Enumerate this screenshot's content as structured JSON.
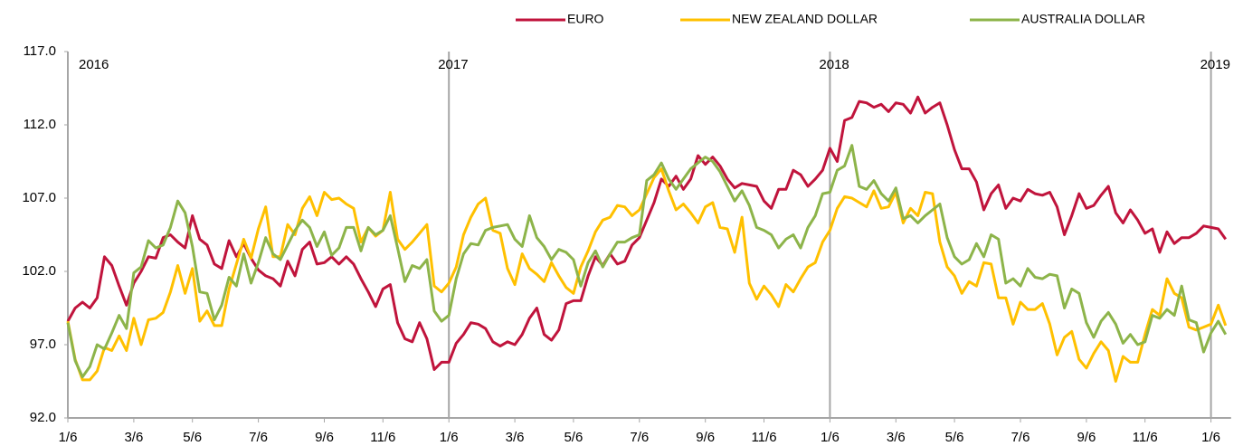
{
  "chart_data": {
    "type": "line",
    "categories": [
      "1/6",
      null,
      null,
      null,
      null,
      null,
      null,
      null,
      null,
      "3/6",
      null,
      null,
      null,
      null,
      null,
      null,
      null,
      "5/6",
      null,
      null,
      null,
      null,
      null,
      null,
      null,
      null,
      "7/6",
      null,
      null,
      null,
      null,
      null,
      null,
      null,
      null,
      "9/6",
      null,
      null,
      null,
      null,
      null,
      null,
      null,
      "11/6",
      null,
      null,
      null,
      null,
      null,
      null,
      null,
      null,
      "1/6",
      null,
      null,
      null,
      null,
      null,
      null,
      null,
      null,
      "3/6",
      null,
      null,
      null,
      null,
      null,
      null,
      null,
      "5/6",
      null,
      null,
      null,
      null,
      null,
      null,
      null,
      null,
      "7/6",
      null,
      null,
      null,
      null,
      null,
      null,
      null,
      null,
      "9/6",
      null,
      null,
      null,
      null,
      null,
      null,
      null,
      "11/6",
      null,
      null,
      null,
      null,
      null,
      null,
      null,
      null,
      "1/6",
      null,
      null,
      null,
      null,
      null,
      null,
      null,
      null,
      "3/6",
      null,
      null,
      null,
      null,
      null,
      null,
      null,
      "5/6",
      null,
      null,
      null,
      null,
      null,
      null,
      null,
      null,
      "7/6",
      null,
      null,
      null,
      null,
      null,
      null,
      null,
      null,
      "9/6",
      null,
      null,
      null,
      null,
      null,
      null,
      null,
      "11/6",
      null,
      null,
      null,
      null,
      null,
      null,
      null,
      null,
      "1/6",
      null,
      null
    ],
    "series": [
      {
        "name": "EURO",
        "color": "#c0143c",
        "values": [
          98.6,
          99.5,
          99.9,
          99.5,
          100.2,
          103.0,
          102.4,
          101.0,
          99.7,
          101.2,
          102.0,
          103.0,
          102.9,
          104.3,
          104.5,
          104.0,
          103.6,
          105.8,
          104.2,
          103.8,
          102.5,
          102.2,
          104.1,
          103.0,
          103.9,
          102.9,
          102.1,
          101.7,
          101.5,
          101.0,
          102.7,
          101.7,
          103.5,
          104.0,
          102.5,
          102.6,
          103.0,
          102.5,
          103.0,
          102.5,
          101.5,
          100.6,
          99.6,
          100.8,
          101.1,
          98.5,
          97.4,
          97.2,
          98.5,
          97.4,
          95.3,
          95.8,
          95.8,
          97.1,
          97.7,
          98.5,
          98.4,
          98.1,
          97.2,
          96.9,
          97.2,
          97.0,
          97.7,
          98.8,
          99.5,
          97.7,
          97.3,
          98.0,
          99.8,
          100.0,
          100.0,
          101.7,
          103.0,
          102.4,
          103.2,
          102.5,
          102.7,
          103.8,
          104.3,
          105.5,
          106.7,
          108.3,
          107.8,
          108.5,
          107.6,
          108.3,
          109.9,
          109.3,
          109.8,
          109.2,
          108.3,
          107.7,
          108.0,
          107.9,
          107.8,
          106.8,
          106.3,
          107.6,
          107.6,
          108.9,
          108.6,
          107.8,
          108.3,
          108.9,
          110.4,
          109.5,
          112.3,
          112.5,
          113.6,
          113.5,
          113.2,
          113.4,
          112.9,
          113.5,
          113.4,
          112.8,
          113.9,
          112.8,
          113.2,
          113.5,
          112.0,
          110.3,
          109.0,
          109.0,
          108.1,
          106.2,
          107.3,
          107.9,
          106.3,
          107.0,
          106.8,
          107.6,
          107.3,
          107.2,
          107.4,
          106.4,
          104.5,
          105.8,
          107.3,
          106.3,
          106.5,
          107.2,
          107.8,
          106.0,
          105.3,
          106.2,
          105.5,
          104.6,
          104.9,
          103.3,
          104.7,
          103.9,
          104.3,
          104.3,
          104.6,
          105.1,
          105.0,
          104.9,
          104.2
        ]
      },
      {
        "name": "NEW ZEALAND DOLLAR",
        "color": "#ffc000",
        "values": [
          98.6,
          96.0,
          94.6,
          94.6,
          95.2,
          96.8,
          96.6,
          97.6,
          96.6,
          98.8,
          97.0,
          98.7,
          98.8,
          99.2,
          100.6,
          102.4,
          100.5,
          102.2,
          98.6,
          99.3,
          98.3,
          98.3,
          100.8,
          102.5,
          104.2,
          102.9,
          104.9,
          106.4,
          103.0,
          103.0,
          105.2,
          104.5,
          106.3,
          107.1,
          105.8,
          107.4,
          106.9,
          107.0,
          106.6,
          106.3,
          104.0,
          105.0,
          104.4,
          104.8,
          107.4,
          104.2,
          103.5,
          104.0,
          104.6,
          105.2,
          101.0,
          100.6,
          101.2,
          102.3,
          104.5,
          105.7,
          106.6,
          107.0,
          104.8,
          104.6,
          102.2,
          101.1,
          103.2,
          102.2,
          101.8,
          101.3,
          102.6,
          101.7,
          100.9,
          100.5,
          102.3,
          103.4,
          104.7,
          105.5,
          105.7,
          106.5,
          106.4,
          105.8,
          106.2,
          107.3,
          108.4,
          109.0,
          107.5,
          106.2,
          106.6,
          106.0,
          105.3,
          106.4,
          106.7,
          105.0,
          104.9,
          103.3,
          105.7,
          101.2,
          100.1,
          101.0,
          100.4,
          99.6,
          101.1,
          100.6,
          101.5,
          102.3,
          102.6,
          104.0,
          104.8,
          106.3,
          107.1,
          107.0,
          106.7,
          106.4,
          107.5,
          106.3,
          106.4,
          107.4,
          105.3,
          106.3,
          105.8,
          107.4,
          107.3,
          104.0,
          102.3,
          101.7,
          100.5,
          101.3,
          101.0,
          102.6,
          102.5,
          100.2,
          100.2,
          98.4,
          99.9,
          99.4,
          99.4,
          99.8,
          98.4,
          96.3,
          97.5,
          97.9,
          96.0,
          95.4,
          96.4,
          97.2,
          96.6,
          94.5,
          96.2,
          95.8,
          95.8,
          97.7,
          99.4,
          99.0,
          101.5,
          100.5,
          100.2,
          98.2,
          98.0,
          98.2,
          98.4,
          99.7,
          98.3
        ]
      },
      {
        "name": "AUSTRALIA DOLLAR",
        "color": "#8db44a",
        "values": [
          98.5,
          95.9,
          94.8,
          95.5,
          97.0,
          96.7,
          97.8,
          99.0,
          98.1,
          101.9,
          102.3,
          104.1,
          103.6,
          103.8,
          105.0,
          106.8,
          106.0,
          103.7,
          100.6,
          100.5,
          98.7,
          99.7,
          101.6,
          101.0,
          103.2,
          101.2,
          102.6,
          104.3,
          103.2,
          102.8,
          103.8,
          104.8,
          105.5,
          105.0,
          103.7,
          104.7,
          103.1,
          103.6,
          105.0,
          105.0,
          103.4,
          105.0,
          104.5,
          104.8,
          105.8,
          103.6,
          101.3,
          102.4,
          102.2,
          102.8,
          99.3,
          98.6,
          99.0,
          101.5,
          103.2,
          103.9,
          103.8,
          104.8,
          105.0,
          105.1,
          105.2,
          104.2,
          103.7,
          105.8,
          104.3,
          103.7,
          102.8,
          103.5,
          103.3,
          102.8,
          101.0,
          102.6,
          103.4,
          102.3,
          103.2,
          104.0,
          104.0,
          104.3,
          104.5,
          108.2,
          108.6,
          109.4,
          108.3,
          107.6,
          108.3,
          109.0,
          109.4,
          109.8,
          109.5,
          108.8,
          107.8,
          106.8,
          107.5,
          106.5,
          105.0,
          104.8,
          104.5,
          103.6,
          104.2,
          104.5,
          103.6,
          105.0,
          105.8,
          107.3,
          107.4,
          108.9,
          109.2,
          110.6,
          107.8,
          107.6,
          108.2,
          107.3,
          106.8,
          107.7,
          105.6,
          105.8,
          105.3,
          105.8,
          106.2,
          106.6,
          104.3,
          103.0,
          102.5,
          102.8,
          103.9,
          103.0,
          104.5,
          104.2,
          101.2,
          101.5,
          101.0,
          102.2,
          101.6,
          101.5,
          101.8,
          101.7,
          99.5,
          100.8,
          100.5,
          98.5,
          97.5,
          98.6,
          99.2,
          98.4,
          97.1,
          97.7,
          97.0,
          97.2,
          99.0,
          98.8,
          99.4,
          99.0,
          101.0,
          98.7,
          98.5,
          96.5,
          97.8,
          98.6,
          97.7
        ]
      }
    ],
    "ylim": [
      92,
      117
    ],
    "yticks": [
      {
        "value": 92,
        "label": "92.0"
      },
      {
        "value": 97,
        "label": "97.0"
      },
      {
        "value": 102,
        "label": "102.0"
      },
      {
        "value": 107,
        "label": "107.0"
      },
      {
        "value": 112,
        "label": "112.0"
      },
      {
        "value": 117,
        "label": "117.0"
      }
    ],
    "year_markers": [
      {
        "label": "2016",
        "index": 0
      },
      {
        "label": "2017",
        "index": 52
      },
      {
        "label": "2018",
        "index": 104
      },
      {
        "label": "2019",
        "index": 156
      }
    ],
    "legend": "top"
  }
}
